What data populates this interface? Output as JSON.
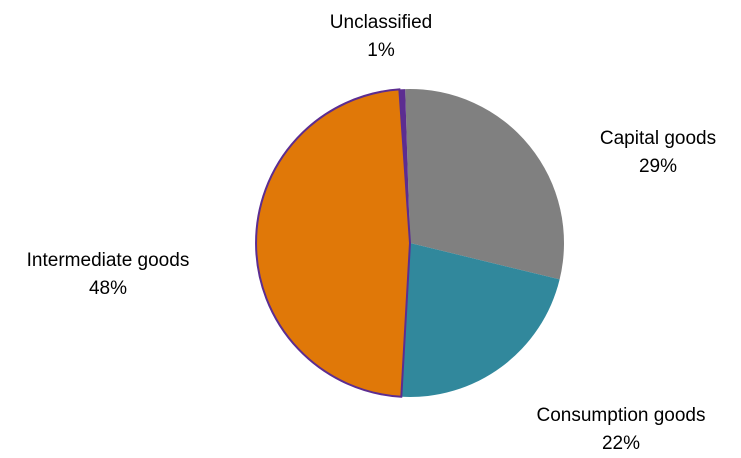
{
  "chart_data": {
    "type": "pie",
    "title": "",
    "start_angle_deg": -1.8,
    "direction": "clockwise",
    "slices": [
      {
        "label": "Capital goods",
        "value_label": "29%",
        "value": 29.3,
        "color": "#808080"
      },
      {
        "label": "Consumption goods",
        "value_label": "22%",
        "value": 22.1,
        "color": "#31889c"
      },
      {
        "label": "Intermediate goods",
        "value_label": "48%",
        "value": 48.0,
        "color": "#e07808"
      },
      {
        "label": "Unclassified",
        "value_label": "1%",
        "value": 0.6,
        "color": "#5c2d91"
      }
    ],
    "slice_border_color": "#5c2d91"
  }
}
